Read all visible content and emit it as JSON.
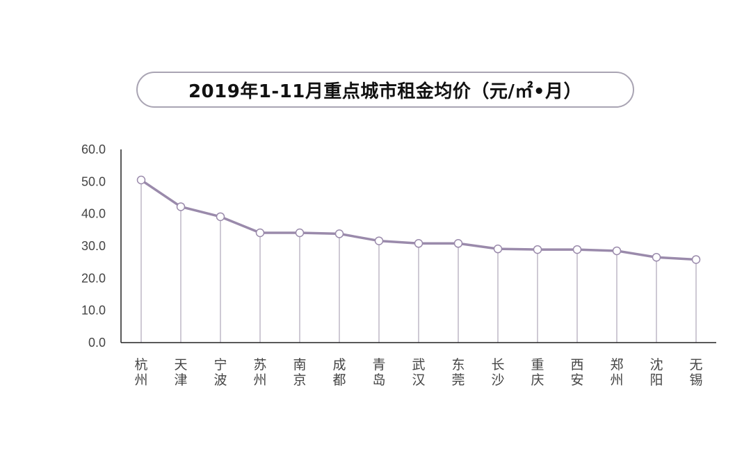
{
  "chart_data": {
    "type": "line",
    "title": "2019年1-11月重点城市租金均价（元/㎡•月）",
    "categories": [
      "杭州",
      "天津",
      "宁波",
      "苏州",
      "南京",
      "成都",
      "青岛",
      "武汉",
      "东莞",
      "长沙",
      "重庆",
      "西安",
      "郑州",
      "沈阳",
      "无锡"
    ],
    "values": [
      50.5,
      42.2,
      39.1,
      34.1,
      34.1,
      33.8,
      31.6,
      30.8,
      30.8,
      29.1,
      28.9,
      28.9,
      28.5,
      26.5,
      25.8
    ],
    "ylim": [
      0,
      60
    ],
    "yticks": [
      "0.0",
      "10.0",
      "20.0",
      "30.0",
      "40.0",
      "50.0",
      "60.0"
    ],
    "xlabel": "",
    "ylabel": "",
    "grid": false,
    "colors": {
      "line": "#9a8aab",
      "marker_fill": "#ffffff",
      "marker_stroke": "#9a8aab",
      "drop_line": "#b3acbd",
      "axis": "#222222"
    }
  }
}
